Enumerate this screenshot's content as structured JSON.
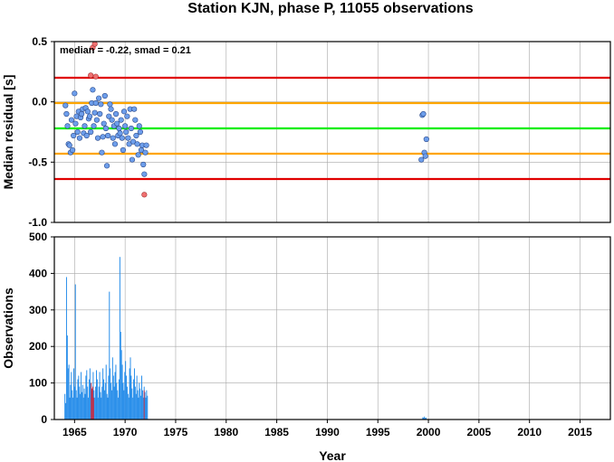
{
  "title": "Station KJN, phase P, 11055 observations",
  "annotation": "median = -0.22, smad = 0.21",
  "colors": {
    "ref_median": "#00ee00",
    "ref_1smad": "#ffa500",
    "ref_2smad": "#e00000",
    "point_normal": "#6d9eeb",
    "point_outlier": "#f07070",
    "bar_normal": "#2a8fea",
    "bar_outlier": "#c0304a"
  },
  "chart_data": [
    {
      "type": "scatter",
      "name": "residuals",
      "ylabel": "Median residual [s]",
      "xlabel": "",
      "xlim": [
        1963,
        2018
      ],
      "ylim": [
        -1.0,
        0.5
      ],
      "xticks": [
        1965,
        1970,
        1975,
        1980,
        1985,
        1990,
        1995,
        2000,
        2005,
        2010,
        2015
      ],
      "yticks": [
        0.5,
        0.0,
        -0.5,
        -1.0
      ],
      "ytick_labels": [
        "0.5",
        "0.0",
        "-0.5",
        "-1.0"
      ],
      "grid": true,
      "reference_lines": [
        {
          "y": 0.2,
          "color": "#e00000"
        },
        {
          "y": -0.01,
          "color": "#ffa500"
        },
        {
          "y": -0.22,
          "color": "#00ee00"
        },
        {
          "y": -0.43,
          "color": "#ffa500"
        },
        {
          "y": -0.64,
          "color": "#e00000"
        }
      ],
      "points": [
        [
          1964.1,
          -0.03
        ],
        [
          1964.2,
          -0.1
        ],
        [
          1964.3,
          -0.2
        ],
        [
          1964.4,
          -0.35
        ],
        [
          1964.5,
          -0.36
        ],
        [
          1964.6,
          -0.42
        ],
        [
          1964.7,
          -0.15
        ],
        [
          1964.8,
          -0.4
        ],
        [
          1964.9,
          -0.28
        ],
        [
          1965.0,
          0.07
        ],
        [
          1965.1,
          -0.18
        ],
        [
          1965.2,
          -0.12
        ],
        [
          1965.3,
          -0.25
        ],
        [
          1965.4,
          -0.08
        ],
        [
          1965.5,
          -0.3
        ],
        [
          1965.6,
          -0.13
        ],
        [
          1965.7,
          -0.1
        ],
        [
          1965.8,
          -0.06
        ],
        [
          1965.9,
          -0.26
        ],
        [
          1966.0,
          -0.2
        ],
        [
          1966.1,
          -0.05
        ],
        [
          1966.2,
          -0.28
        ],
        [
          1966.3,
          -0.08
        ],
        [
          1966.4,
          -0.14
        ],
        [
          1966.5,
          -0.12
        ],
        [
          1966.6,
          -0.25
        ],
        [
          1966.7,
          -0.01
        ],
        [
          1966.8,
          0.1
        ],
        [
          1966.9,
          -0.2
        ],
        [
          1967.0,
          -0.09
        ],
        [
          1967.1,
          -0.01
        ],
        [
          1967.2,
          -0.15
        ],
        [
          1967.3,
          -0.3
        ],
        [
          1967.4,
          0.03
        ],
        [
          1967.5,
          -0.1
        ],
        [
          1967.6,
          -0.02
        ],
        [
          1967.7,
          -0.42
        ],
        [
          1967.8,
          -0.29
        ],
        [
          1967.9,
          -0.18
        ],
        [
          1968.0,
          0.05
        ],
        [
          1968.1,
          -0.22
        ],
        [
          1968.2,
          -0.53
        ],
        [
          1968.3,
          -0.28
        ],
        [
          1968.4,
          -0.12
        ],
        [
          1968.5,
          -0.02
        ],
        [
          1968.6,
          -0.06
        ],
        [
          1968.7,
          -0.15
        ],
        [
          1968.8,
          -0.3
        ],
        [
          1968.9,
          -0.2
        ],
        [
          1969.0,
          -0.35
        ],
        [
          1969.1,
          -0.1
        ],
        [
          1969.2,
          -0.18
        ],
        [
          1969.3,
          -0.28
        ],
        [
          1969.4,
          -0.22
        ],
        [
          1969.5,
          -0.26
        ],
        [
          1969.6,
          -0.15
        ],
        [
          1969.7,
          -0.3
        ],
        [
          1969.8,
          -0.4
        ],
        [
          1969.9,
          -0.08
        ],
        [
          1970.0,
          -0.2
        ],
        [
          1970.1,
          -0.25
        ],
        [
          1970.2,
          -0.12
        ],
        [
          1970.3,
          -0.3
        ],
        [
          1970.4,
          -0.35
        ],
        [
          1970.5,
          -0.06
        ],
        [
          1970.6,
          -0.22
        ],
        [
          1970.7,
          -0.48
        ],
        [
          1970.8,
          -0.33
        ],
        [
          1970.9,
          -0.06
        ],
        [
          1971.0,
          -0.15
        ],
        [
          1971.1,
          -0.28
        ],
        [
          1971.2,
          -0.35
        ],
        [
          1971.3,
          -0.44
        ],
        [
          1971.4,
          -0.2
        ],
        [
          1971.5,
          -0.25
        ],
        [
          1971.6,
          -0.4
        ],
        [
          1971.7,
          -0.36
        ],
        [
          1971.8,
          -0.52
        ],
        [
          1971.9,
          -0.6
        ],
        [
          1972.0,
          -0.42
        ],
        [
          1972.1,
          -0.36
        ],
        [
          1999.3,
          -0.48
        ],
        [
          1999.4,
          -0.11
        ],
        [
          1999.5,
          -0.1
        ],
        [
          1999.6,
          -0.42
        ],
        [
          1999.7,
          -0.45
        ],
        [
          1999.8,
          -0.31
        ]
      ],
      "outliers": [
        [
          1966.6,
          0.22
        ],
        [
          1966.8,
          0.45
        ],
        [
          1967.0,
          0.48
        ],
        [
          1967.1,
          0.21
        ],
        [
          1971.9,
          -0.77
        ]
      ]
    },
    {
      "type": "bar",
      "name": "observations",
      "ylabel": "Observations",
      "xlabel": "Year",
      "xlim": [
        1963,
        2018
      ],
      "ylim": [
        0,
        500
      ],
      "xticks": [
        1965,
        1970,
        1975,
        1980,
        1985,
        1990,
        1995,
        2000,
        2005,
        2010,
        2015
      ],
      "yticks": [
        0,
        100,
        200,
        300,
        400,
        500
      ],
      "grid": true,
      "bars": [
        [
          1964.0,
          70
        ],
        [
          1964.08,
          45
        ],
        [
          1964.16,
          390
        ],
        [
          1964.24,
          230
        ],
        [
          1964.32,
          140
        ],
        [
          1964.4,
          150
        ],
        [
          1964.48,
          60
        ],
        [
          1964.56,
          95
        ],
        [
          1964.64,
          130
        ],
        [
          1964.72,
          80
        ],
        [
          1964.8,
          60
        ],
        [
          1964.88,
          140
        ],
        [
          1964.96,
          90
        ],
        [
          1965.04,
          370
        ],
        [
          1965.12,
          80
        ],
        [
          1965.2,
          60
        ],
        [
          1965.28,
          110
        ],
        [
          1965.36,
          120
        ],
        [
          1965.44,
          90
        ],
        [
          1965.52,
          70
        ],
        [
          1965.6,
          130
        ],
        [
          1965.68,
          75
        ],
        [
          1965.76,
          95
        ],
        [
          1965.84,
          60
        ],
        [
          1965.92,
          85
        ],
        [
          1966.0,
          70
        ],
        [
          1966.08,
          120
        ],
        [
          1966.16,
          135
        ],
        [
          1966.24,
          90
        ],
        [
          1966.32,
          60
        ],
        [
          1966.4,
          110
        ],
        [
          1966.48,
          140
        ],
        [
          1966.56,
          100
        ],
        [
          1966.64,
          80
        ],
        [
          1966.72,
          60
        ],
        [
          1966.8,
          130
        ],
        [
          1966.88,
          80
        ],
        [
          1966.96,
          60
        ],
        [
          1967.04,
          90
        ],
        [
          1967.12,
          135
        ],
        [
          1967.2,
          110
        ],
        [
          1967.28,
          60
        ],
        [
          1967.36,
          90
        ],
        [
          1967.44,
          130
        ],
        [
          1967.52,
          75
        ],
        [
          1967.6,
          60
        ],
        [
          1967.68,
          90
        ],
        [
          1967.76,
          140
        ],
        [
          1967.84,
          110
        ],
        [
          1967.92,
          80
        ],
        [
          1968.0,
          100
        ],
        [
          1968.08,
          150
        ],
        [
          1968.16,
          70
        ],
        [
          1968.24,
          60
        ],
        [
          1968.32,
          120
        ],
        [
          1968.4,
          350
        ],
        [
          1968.48,
          140
        ],
        [
          1968.56,
          100
        ],
        [
          1968.64,
          80
        ],
        [
          1968.72,
          170
        ],
        [
          1968.8,
          120
        ],
        [
          1968.88,
          90
        ],
        [
          1968.96,
          130
        ],
        [
          1969.04,
          150
        ],
        [
          1969.12,
          100
        ],
        [
          1969.2,
          80
        ],
        [
          1969.28,
          60
        ],
        [
          1969.36,
          110
        ],
        [
          1969.44,
          445
        ],
        [
          1969.52,
          240
        ],
        [
          1969.6,
          190
        ],
        [
          1969.68,
          150
        ],
        [
          1969.76,
          100
        ],
        [
          1969.84,
          80
        ],
        [
          1969.92,
          130
        ],
        [
          1970.0,
          160
        ],
        [
          1970.08,
          120
        ],
        [
          1970.16,
          90
        ],
        [
          1970.24,
          70
        ],
        [
          1970.32,
          60
        ],
        [
          1970.4,
          140
        ],
        [
          1970.48,
          170
        ],
        [
          1970.56,
          120
        ],
        [
          1970.64,
          85
        ],
        [
          1970.72,
          60
        ],
        [
          1970.8,
          110
        ],
        [
          1970.88,
          140
        ],
        [
          1970.96,
          90
        ],
        [
          1971.04,
          70
        ],
        [
          1971.12,
          120
        ],
        [
          1971.2,
          80
        ],
        [
          1971.28,
          60
        ],
        [
          1971.36,
          100
        ],
        [
          1971.44,
          85
        ],
        [
          1971.52,
          65
        ],
        [
          1971.6,
          120
        ],
        [
          1971.68,
          80
        ],
        [
          1971.76,
          60
        ],
        [
          1971.84,
          90
        ],
        [
          1971.92,
          75
        ],
        [
          1972.0,
          60
        ],
        [
          1972.08,
          80
        ],
        [
          1972.16,
          65
        ],
        [
          1999.4,
          6
        ],
        [
          1999.48,
          5
        ],
        [
          1999.56,
          8
        ],
        [
          1999.64,
          4
        ],
        [
          1999.72,
          5
        ]
      ],
      "outlier_bars": [
        [
          1966.6,
          100
        ],
        [
          1966.68,
          85
        ],
        [
          1966.76,
          90
        ],
        [
          1966.84,
          60
        ],
        [
          1971.84,
          80
        ]
      ]
    }
  ]
}
